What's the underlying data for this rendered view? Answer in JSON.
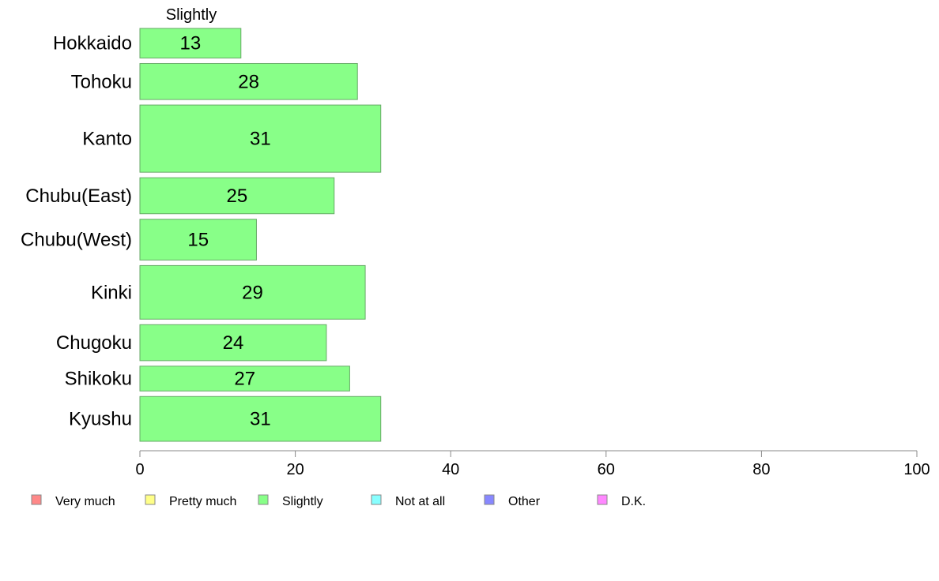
{
  "chart_data": {
    "type": "bar",
    "orientation": "horizontal",
    "column_header": "Slightly",
    "categories": [
      "Hokkaido",
      "Tohoku",
      "Kanto",
      "Chubu(East)",
      "Chubu(West)",
      "Kinki",
      "Chugoku",
      "Shikoku",
      "Kyushu"
    ],
    "category_band_weights": [
      37,
      45,
      84,
      45,
      51,
      67,
      45,
      31,
      56
    ],
    "series": [
      {
        "name": "Slightly",
        "values": [
          13,
          28,
          31,
          25,
          15,
          29,
          24,
          27,
          31
        ],
        "color": "#88ff88"
      }
    ],
    "xlim": [
      0,
      100
    ],
    "xticks": [
      "0",
      "20",
      "40",
      "60",
      "80",
      "100"
    ],
    "grid": false,
    "legend": {
      "placement": "bottom",
      "items": [
        {
          "label": "Very much",
          "color": "#ff8888"
        },
        {
          "label": "Pretty much",
          "color": "#ffff88"
        },
        {
          "label": "Slightly",
          "color": "#88ff88"
        },
        {
          "label": "Not at all",
          "color": "#88ffff"
        },
        {
          "label": "Other",
          "color": "#8888ff"
        },
        {
          "label": "D.K.",
          "color": "#ff88ff"
        }
      ]
    },
    "bar_edge_color": "#66aa66",
    "axis_color": "#888888"
  }
}
